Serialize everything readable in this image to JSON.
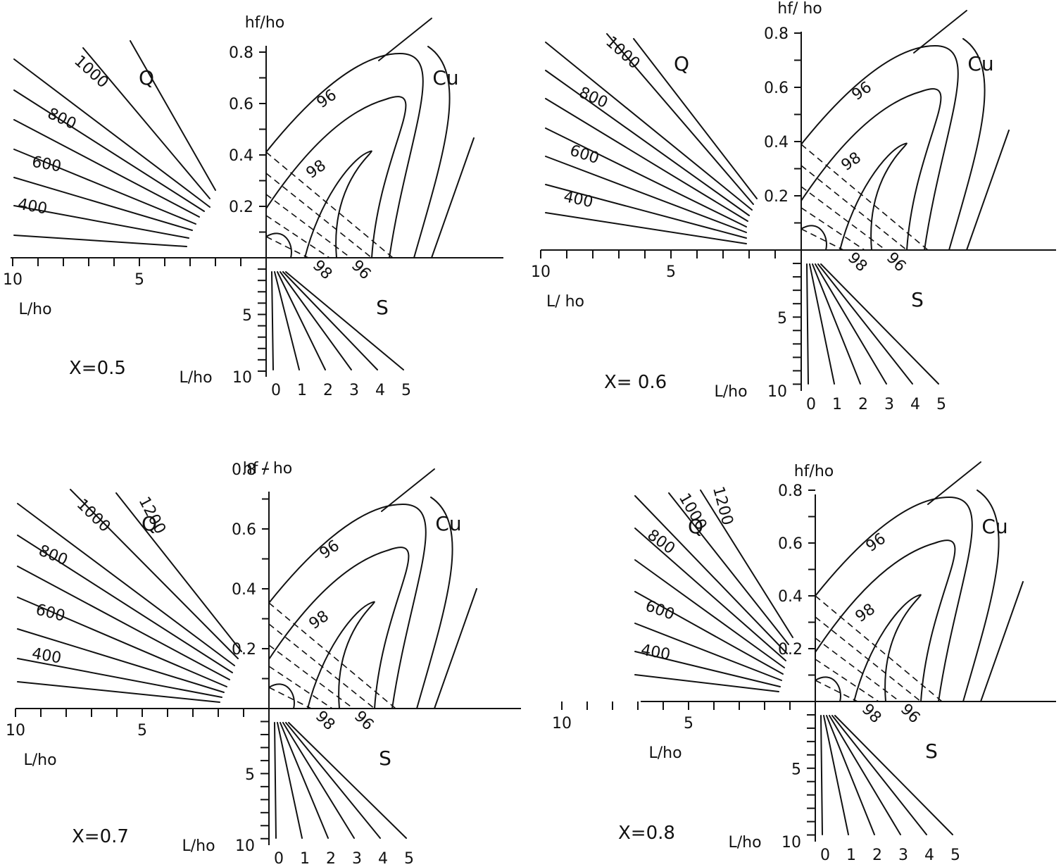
{
  "chart_data": [
    {
      "type": "nomogram",
      "panel_label": "X=0.5",
      "labels": {
        "y_axis": "hf/ho",
        "x_axis_left": "L/ho",
        "x_axis_lower": "L/ho",
        "quadrant_Q": "Q",
        "quadrant_Cu": "Cu",
        "quadrant_S": "S"
      },
      "hf_ticks": [
        "0.2",
        "0.4",
        "0.6",
        "0.8"
      ],
      "left_ticks": [
        "5",
        "10"
      ],
      "lower_ticks": [
        "5",
        "10"
      ],
      "Q_line_labels": [
        "400",
        "600",
        "800",
        "1000"
      ],
      "Cu_contour_labels": [
        "96",
        "98"
      ],
      "Cu_axis_labels": [
        "98",
        "96"
      ],
      "S_line_labels": [
        "0",
        "1",
        "2",
        "3",
        "4",
        "5"
      ]
    },
    {
      "type": "nomogram",
      "panel_label": "X= 0.6",
      "labels": {
        "y_axis": "hf/ ho",
        "x_axis_left": "L/ ho",
        "x_axis_lower": "L/ho",
        "quadrant_Q": "Q",
        "quadrant_Cu": "Cu",
        "quadrant_S": "S"
      },
      "hf_ticks": [
        "0.2",
        "0.4",
        "0.6",
        "0.8"
      ],
      "left_ticks": [
        "5",
        "10"
      ],
      "lower_ticks": [
        "5",
        "10"
      ],
      "Q_line_labels": [
        "400",
        "600",
        "800",
        "1000"
      ],
      "Cu_contour_labels": [
        "96",
        "98"
      ],
      "Cu_axis_labels": [
        "98",
        "96"
      ],
      "S_line_labels": [
        "0",
        "1",
        "2",
        "3",
        "4",
        "5"
      ]
    },
    {
      "type": "nomogram",
      "panel_label": "X=0.7",
      "labels": {
        "y_axis": "hf / ho",
        "x_axis_left": "L/ho",
        "x_axis_lower": "L/ho",
        "quadrant_Q": "Q",
        "quadrant_Cu": "Cu",
        "quadrant_S": "S"
      },
      "hf_ticks": [
        "0.2",
        "0.4",
        "0.6",
        "0.8"
      ],
      "left_ticks": [
        "5",
        "10"
      ],
      "lower_ticks": [
        "5",
        "10"
      ],
      "Q_line_labels": [
        "400",
        "600",
        "800",
        "1000",
        "1200"
      ],
      "Cu_contour_labels": [
        "96",
        "98"
      ],
      "Cu_axis_labels": [
        "98",
        "96"
      ],
      "S_line_labels": [
        "0",
        "1",
        "2",
        "3",
        "4",
        "5"
      ]
    },
    {
      "type": "nomogram",
      "panel_label": "X=0.8",
      "labels": {
        "y_axis": "hf/ho",
        "x_axis_left": "L/ho",
        "x_axis_lower": "L/ho",
        "quadrant_Q": "Q",
        "quadrant_Cu": "Cu",
        "quadrant_S": "S"
      },
      "hf_ticks": [
        "0.2",
        "0.4",
        "0.6",
        "0.8"
      ],
      "left_ticks": [
        "5",
        "10"
      ],
      "lower_ticks": [
        "5",
        "10"
      ],
      "Q_line_labels": [
        "400",
        "600",
        "800",
        "1000",
        "1200"
      ],
      "Cu_contour_labels": [
        "96",
        "98"
      ],
      "Cu_axis_labels": [
        "98",
        "96"
      ],
      "S_line_labels": [
        "0",
        "1",
        "2",
        "3",
        "4",
        "5"
      ]
    }
  ]
}
